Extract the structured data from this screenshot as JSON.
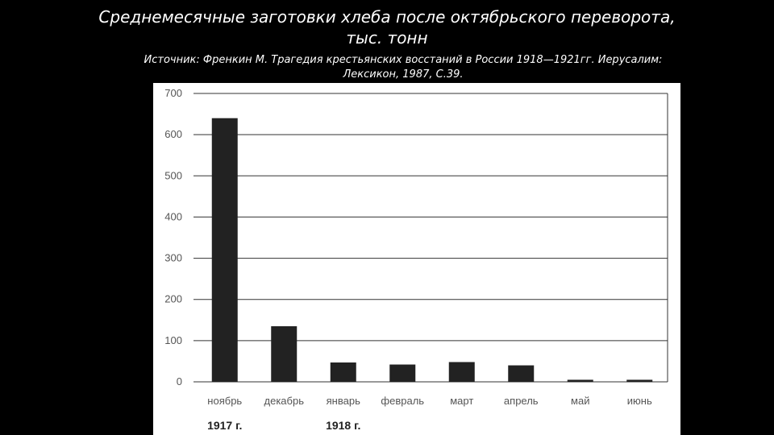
{
  "slide": {
    "title_line1": "Среднемесячные заготовки хлеба после октябрьского переворота,",
    "title_line2": "тыс. тонн",
    "source_line1": "Источник: Френкин М. Трагедия крестьянских восстаний в России 1918—1921гг. Иерусалим:",
    "source_line2": "Лексикон, 1987, С.39."
  },
  "chart_data": {
    "type": "bar",
    "title": "",
    "xlabel": "",
    "ylabel": "",
    "categories": [
      "ноябрь",
      "декабрь",
      "январь",
      "февраль",
      "март",
      "апрель",
      "май",
      "июнь"
    ],
    "values": [
      640,
      135,
      47,
      42,
      48,
      40,
      5,
      5
    ],
    "ylim": [
      0,
      700
    ],
    "yticks": [
      0,
      100,
      200,
      300,
      400,
      500,
      600,
      700
    ],
    "grid": true,
    "bar_color": "#222222",
    "year_labels": [
      {
        "label": "1917 г.",
        "category": "ноябрь"
      },
      {
        "label": "1918 г.",
        "category": "январь"
      }
    ]
  }
}
